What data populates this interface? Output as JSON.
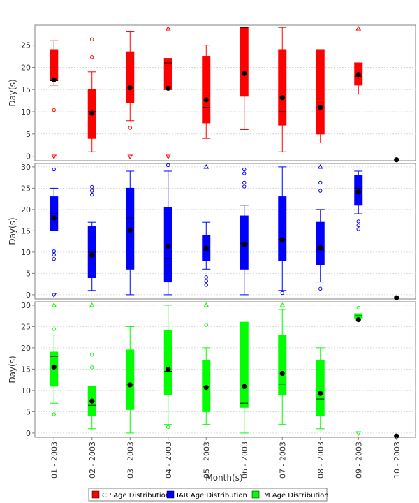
{
  "chart_data": {
    "type": "boxplot",
    "xlabel": "Month(s)",
    "categories": [
      "01 - 2003",
      "02 - 2003",
      "03 - 2003",
      "04 - 2003",
      "05 - 2003",
      "06 - 2003",
      "07 - 2003",
      "08 - 2003",
      "09 - 2003",
      "10 - 2003"
    ],
    "grid": true,
    "legend_position": "bottom-center",
    "panels": [
      {
        "name": "CP Age Distribution",
        "color": "#ff0000",
        "ylabel": "Day(s)",
        "ylim": [
          -1,
          29.5
        ],
        "yticks": [
          0,
          5,
          10,
          15,
          20,
          25
        ],
        "boxes": [
          {
            "q1": 17,
            "median": 17,
            "q3": 24,
            "whisker_low": 16,
            "whisker_high": 26,
            "mean": 17.2,
            "outliers": [
              10.4
            ],
            "extremes_low": true,
            "extremes_high": false
          },
          {
            "q1": 4,
            "median": 10,
            "q3": 15,
            "whisker_low": 1,
            "whisker_high": 19,
            "mean": 9.7,
            "outliers": [
              22.3,
              26.3
            ],
            "extremes_low": false,
            "extremes_high": false
          },
          {
            "q1": 12,
            "median": 14,
            "q3": 23.5,
            "whisker_low": 8,
            "whisker_high": 28,
            "mean": 15.4,
            "outliers": [
              6.4
            ],
            "extremes_low": true,
            "extremes_high": false
          },
          {
            "q1": 15,
            "median": 21,
            "q3": 22,
            "whisker_low": 15,
            "whisker_high": 22,
            "mean": 15.3,
            "outliers": [],
            "extremes_low": true,
            "extremes_high": true
          },
          {
            "q1": 7.5,
            "median": 11,
            "q3": 22.5,
            "whisker_low": 4,
            "whisker_high": 25,
            "mean": 12.7,
            "outliers": [],
            "extremes_low": false,
            "extremes_high": false
          },
          {
            "q1": 13.5,
            "median": 29,
            "q3": 29,
            "whisker_low": 6,
            "whisker_high": 29,
            "mean": 18.6,
            "outliers": [],
            "extremes_low": false,
            "extremes_high": false
          },
          {
            "q1": 7,
            "median": 10,
            "q3": 24,
            "whisker_low": 1,
            "whisker_high": 29,
            "mean": 13.2,
            "outliers": [],
            "extremes_low": false,
            "extremes_high": false
          },
          {
            "q1": 5,
            "median": 12,
            "q3": 24,
            "whisker_low": 3,
            "whisker_high": 24,
            "mean": 11,
            "outliers": [],
            "extremes_low": false,
            "extremes_high": false
          },
          {
            "q1": 16,
            "median": 18,
            "q3": 21,
            "whisker_low": 14,
            "whisker_high": 21,
            "mean": 18.4,
            "outliers": [],
            "extremes_low": false,
            "extremes_high": true
          },
          {
            "q1": null,
            "median": null,
            "q3": null,
            "whisker_low": null,
            "whisker_high": null,
            "mean": -0.8,
            "outliers": [],
            "extremes_low": false,
            "extremes_high": false
          }
        ]
      },
      {
        "name": "IAR Age Distribution",
        "color": "#0000ff",
        "ylabel": "Day(s)",
        "ylim": [
          -1,
          30.8
        ],
        "yticks": [
          0,
          5,
          10,
          15,
          20,
          25,
          30
        ],
        "boxes": [
          {
            "q1": 15,
            "median": 19,
            "q3": 23,
            "whisker_low": 15,
            "whisker_high": 25,
            "mean": 18,
            "outliers": [
              8.4,
              9.4,
              10.2,
              29.4
            ],
            "extremes_low": true,
            "extremes_high": false
          },
          {
            "q1": 4,
            "median": 10,
            "q3": 16,
            "whisker_low": 1,
            "whisker_high": 17,
            "mean": 9.3,
            "outliers": [
              23.5,
              24.4,
              25.3
            ],
            "extremes_low": false,
            "extremes_high": false
          },
          {
            "q1": 6,
            "median": 18,
            "q3": 25,
            "whisker_low": 0,
            "whisker_high": 29,
            "mean": 15.2,
            "outliers": [],
            "extremes_low": false,
            "extremes_high": false
          },
          {
            "q1": 3,
            "median": 8.5,
            "q3": 20.5,
            "whisker_low": 0,
            "whisker_high": 29,
            "mean": 11.4,
            "outliers": [
              30.4
            ],
            "extremes_low": false,
            "extremes_high": false
          },
          {
            "q1": 8,
            "median": 10.5,
            "q3": 14,
            "whisker_low": 6,
            "whisker_high": 17,
            "mean": 10.9,
            "outliers": [
              2.3,
              3.2,
              4.1
            ],
            "extremes_low": false,
            "extremes_high": true
          },
          {
            "q1": 6,
            "median": 12,
            "q3": 18.5,
            "whisker_low": 0,
            "whisker_high": 21,
            "mean": 11.8,
            "outliers": [
              25.4,
              26.3,
              28.5,
              29.4
            ],
            "extremes_low": false,
            "extremes_high": false
          },
          {
            "q1": 8,
            "median": 13,
            "q3": 23,
            "whisker_low": 1,
            "whisker_high": 30,
            "mean": 12.9,
            "outliers": [
              0.4
            ],
            "extremes_low": false,
            "extremes_high": false
          },
          {
            "q1": 7,
            "median": 10.5,
            "q3": 17,
            "whisker_low": 3,
            "whisker_high": 20,
            "mean": 11,
            "outliers": [
              1.4,
              24.4,
              26.3
            ],
            "extremes_low": false,
            "extremes_high": true
          },
          {
            "q1": 21,
            "median": 25,
            "q3": 28,
            "whisker_low": 19,
            "whisker_high": 29,
            "mean": 24.1,
            "outliers": [
              15.4,
              16.3,
              17.2
            ],
            "extremes_low": false,
            "extremes_high": false
          },
          {
            "q1": null,
            "median": null,
            "q3": null,
            "whisker_low": null,
            "whisker_high": null,
            "mean": -0.7,
            "outliers": [],
            "extremes_low": false,
            "extremes_high": false
          }
        ]
      },
      {
        "name": "IM Age Distribution",
        "color": "#00ff00",
        "ylabel": "Day(s)",
        "ylim": [
          -1,
          30.8
        ],
        "yticks": [
          0,
          5,
          10,
          15,
          20,
          25,
          30
        ],
        "boxes": [
          {
            "q1": 11,
            "median": 18,
            "q3": 19,
            "whisker_low": 7,
            "whisker_high": 23,
            "mean": 15.5,
            "outliers": [
              4.4,
              24.4
            ],
            "extremes_low": false,
            "extremes_high": true
          },
          {
            "q1": 4,
            "median": 6.5,
            "q3": 11,
            "whisker_low": 1,
            "whisker_high": 11,
            "mean": 7.5,
            "outliers": [
              15.4,
              18.4
            ],
            "extremes_low": false,
            "extremes_high": true
          },
          {
            "q1": 5.5,
            "median": 11.5,
            "q3": 19.5,
            "whisker_low": 0,
            "whisker_high": 25,
            "mean": 11.3,
            "outliers": [],
            "extremes_low": false,
            "extremes_high": false
          },
          {
            "q1": 9,
            "median": 14.5,
            "q3": 24,
            "whisker_low": 2,
            "whisker_high": 30,
            "mean": 15,
            "outliers": [
              1.4
            ],
            "extremes_low": false,
            "extremes_high": false
          },
          {
            "q1": 5,
            "median": 11,
            "q3": 17,
            "whisker_low": 2,
            "whisker_high": 20,
            "mean": 10.7,
            "outliers": [
              25.4
            ],
            "extremes_low": false,
            "extremes_high": true
          },
          {
            "q1": 6,
            "median": 7,
            "q3": 26,
            "whisker_low": 0,
            "whisker_high": 26,
            "mean": 10.9,
            "outliers": [],
            "extremes_low": false,
            "extremes_high": false
          },
          {
            "q1": 9,
            "median": 11.5,
            "q3": 23,
            "whisker_low": 2,
            "whisker_high": 29,
            "mean": 14,
            "outliers": [],
            "extremes_low": false,
            "extremes_high": true
          },
          {
            "q1": 4,
            "median": 8,
            "q3": 17,
            "whisker_low": 1,
            "whisker_high": 20,
            "mean": 9.3,
            "outliers": [],
            "extremes_low": false,
            "extremes_high": false
          },
          {
            "q1": 27,
            "median": 27.5,
            "q3": 28,
            "whisker_low": 27,
            "whisker_high": 28,
            "mean": 26.6,
            "outliers": [
              29.4
            ],
            "extremes_low": true,
            "extremes_high": false
          },
          {
            "q1": null,
            "median": null,
            "q3": null,
            "whisker_low": null,
            "whisker_high": null,
            "mean": -0.7,
            "outliers": [],
            "extremes_low": false,
            "extremes_high": false
          }
        ]
      }
    ]
  }
}
